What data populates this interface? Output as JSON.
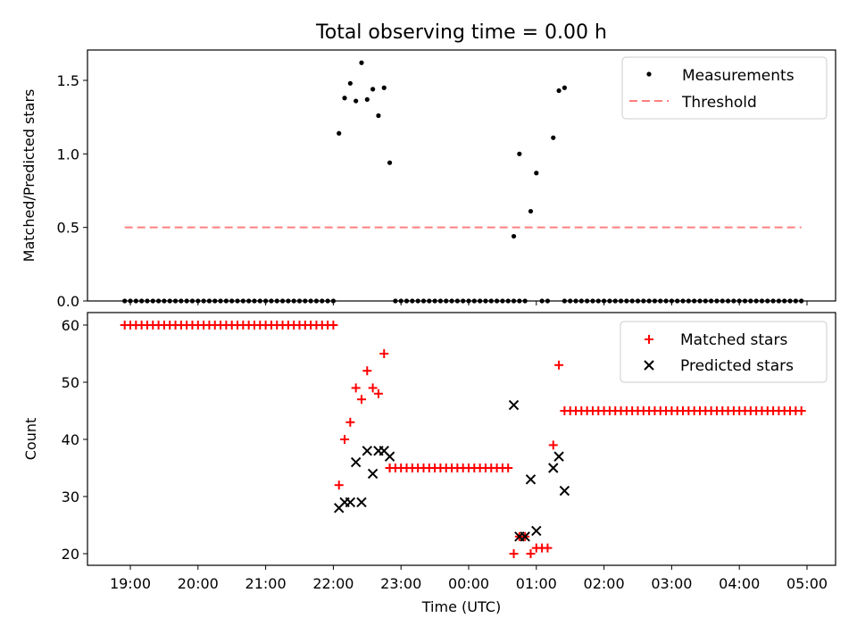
{
  "figure": {
    "title": "Total observing time = 0.00 h"
  },
  "chart_data": [
    {
      "type": "scatter",
      "ylabel": "Matched/Predicted stars",
      "xlabel": "",
      "ylim": [
        0,
        1.7
      ],
      "yticks": [
        0.0,
        0.5,
        1.0,
        1.5
      ],
      "ytick_labels": [
        "0.0",
        "0.5",
        "1.0",
        "1.5"
      ],
      "legend": {
        "placement": "top-right",
        "entries": [
          {
            "label": "Measurements",
            "marker": "dot",
            "color": "#000000"
          },
          {
            "label": "Threshold",
            "marker": "dashed-line",
            "color": "#ff7f7f"
          }
        ]
      },
      "series": [
        {
          "name": "Measurements",
          "color": "#000000",
          "marker": "dot",
          "x_zero": [
            "18:55",
            "19:00",
            "19:05",
            "19:10",
            "19:15",
            "19:20",
            "19:25",
            "19:30",
            "19:35",
            "19:40",
            "19:45",
            "19:50",
            "19:55",
            "20:00",
            "20:05",
            "20:10",
            "20:15",
            "20:20",
            "20:25",
            "20:30",
            "20:35",
            "20:40",
            "20:45",
            "20:50",
            "20:55",
            "21:00",
            "21:05",
            "21:10",
            "21:15",
            "21:20",
            "21:25",
            "21:30",
            "21:35",
            "21:40",
            "21:45",
            "21:50",
            "21:55",
            "22:00",
            "22:55",
            "23:00",
            "23:05",
            "23:10",
            "23:15",
            "23:20",
            "23:25",
            "23:30",
            "23:35",
            "23:40",
            "23:45",
            "23:50",
            "23:55",
            "00:00",
            "00:05",
            "00:10",
            "00:15",
            "00:20",
            "00:25",
            "00:30",
            "00:35",
            "00:40",
            "00:45",
            "00:50",
            "01:05",
            "01:10",
            "01:25",
            "01:30",
            "01:35",
            "01:40",
            "01:45",
            "01:50",
            "01:55",
            "02:00",
            "02:05",
            "02:10",
            "02:15",
            "02:20",
            "02:25",
            "02:30",
            "02:35",
            "02:40",
            "02:45",
            "02:50",
            "02:55",
            "03:00",
            "03:05",
            "03:10",
            "03:15",
            "03:20",
            "03:25",
            "03:30",
            "03:35",
            "03:40",
            "03:45",
            "03:50",
            "03:55",
            "04:00",
            "04:05",
            "04:10",
            "04:15",
            "04:20",
            "04:25",
            "04:30",
            "04:35",
            "04:40",
            "04:45",
            "04:50",
            "04:55"
          ],
          "points": [
            {
              "x": "22:05",
              "y": 1.14
            },
            {
              "x": "22:10",
              "y": 1.38
            },
            {
              "x": "22:15",
              "y": 1.48
            },
            {
              "x": "22:20",
              "y": 1.36
            },
            {
              "x": "22:25",
              "y": 1.62
            },
            {
              "x": "22:30",
              "y": 1.37
            },
            {
              "x": "22:35",
              "y": 1.44
            },
            {
              "x": "22:40",
              "y": 1.26
            },
            {
              "x": "22:45",
              "y": 1.45
            },
            {
              "x": "22:50",
              "y": 0.94
            },
            {
              "x": "00:40",
              "y": 0.44
            },
            {
              "x": "00:45",
              "y": 1.0
            },
            {
              "x": "00:55",
              "y": 0.61
            },
            {
              "x": "01:00",
              "y": 0.87
            },
            {
              "x": "01:15",
              "y": 1.11
            },
            {
              "x": "01:20",
              "y": 1.43
            },
            {
              "x": "01:25",
              "y": 1.45
            }
          ]
        },
        {
          "name": "Threshold",
          "color": "#ff7f7f",
          "style": "dashed",
          "x": [
            "18:55",
            "04:55"
          ],
          "y": [
            0.5,
            0.5
          ]
        }
      ]
    },
    {
      "type": "scatter",
      "ylabel": "Count",
      "xlabel": "Time (UTC)",
      "ylim": [
        18,
        62
      ],
      "yticks": [
        20,
        30,
        40,
        50,
        60
      ],
      "ytick_labels": [
        "20",
        "30",
        "40",
        "50",
        "60"
      ],
      "xticks": [
        "19:00",
        "20:00",
        "21:00",
        "22:00",
        "23:00",
        "00:00",
        "01:00",
        "02:00",
        "03:00",
        "04:00",
        "05:00"
      ],
      "legend": {
        "placement": "top-right",
        "entries": [
          {
            "label": "Matched stars",
            "marker": "plus",
            "color": "#ff0000"
          },
          {
            "label": "Predicted stars",
            "marker": "x",
            "color": "#000000"
          }
        ]
      },
      "series": [
        {
          "name": "Matched stars",
          "color": "#ff0000",
          "marker": "plus",
          "runs": [
            {
              "from": "18:55",
              "to": "22:00",
              "y": 60
            },
            {
              "from": "22:50",
              "to": "00:35",
              "y": 35
            },
            {
              "from": "01:30",
              "to": "04:55",
              "y": 45
            }
          ],
          "points": [
            {
              "x": "22:05",
              "y": 32
            },
            {
              "x": "22:10",
              "y": 40
            },
            {
              "x": "22:15",
              "y": 43
            },
            {
              "x": "22:20",
              "y": 49
            },
            {
              "x": "22:25",
              "y": 47
            },
            {
              "x": "22:30",
              "y": 52
            },
            {
              "x": "22:35",
              "y": 49
            },
            {
              "x": "22:40",
              "y": 48
            },
            {
              "x": "22:45",
              "y": 55
            },
            {
              "x": "22:50",
              "y": 35
            },
            {
              "x": "00:40",
              "y": 20
            },
            {
              "x": "00:45",
              "y": 23
            },
            {
              "x": "00:50",
              "y": 23
            },
            {
              "x": "00:55",
              "y": 20
            },
            {
              "x": "01:00",
              "y": 21
            },
            {
              "x": "01:05",
              "y": 21
            },
            {
              "x": "01:10",
              "y": 21
            },
            {
              "x": "01:15",
              "y": 39
            },
            {
              "x": "01:20",
              "y": 53
            },
            {
              "x": "01:25",
              "y": 45
            }
          ]
        },
        {
          "name": "Predicted stars",
          "color": "#000000",
          "marker": "x",
          "points": [
            {
              "x": "22:05",
              "y": 28
            },
            {
              "x": "22:10",
              "y": 29
            },
            {
              "x": "22:15",
              "y": 29
            },
            {
              "x": "22:20",
              "y": 36
            },
            {
              "x": "22:25",
              "y": 29
            },
            {
              "x": "22:30",
              "y": 38
            },
            {
              "x": "22:35",
              "y": 34
            },
            {
              "x": "22:40",
              "y": 38
            },
            {
              "x": "22:45",
              "y": 38
            },
            {
              "x": "22:50",
              "y": 37
            },
            {
              "x": "00:40",
              "y": 46
            },
            {
              "x": "00:45",
              "y": 23
            },
            {
              "x": "00:50",
              "y": 23
            },
            {
              "x": "00:55",
              "y": 33
            },
            {
              "x": "01:00",
              "y": 24
            },
            {
              "x": "01:15",
              "y": 35
            },
            {
              "x": "01:20",
              "y": 37
            },
            {
              "x": "01:25",
              "y": 31
            }
          ]
        }
      ]
    }
  ]
}
